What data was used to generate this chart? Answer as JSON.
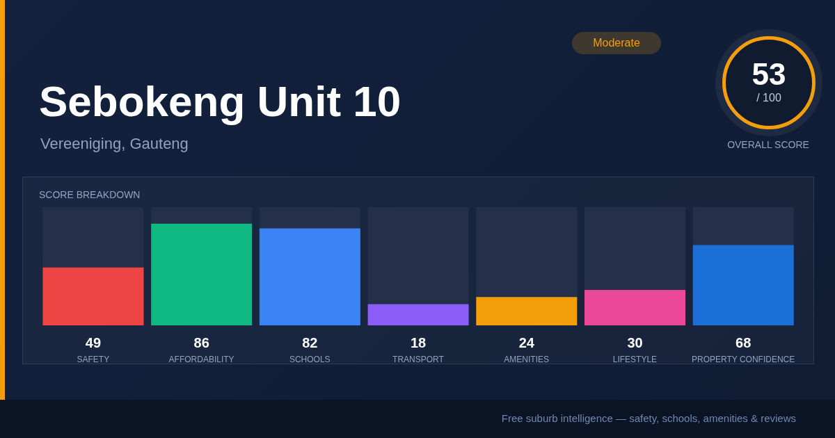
{
  "chart_data": {
    "type": "bar",
    "title": "Sebokeng Unit 10",
    "subtitle": "Vereeniging, Gauteng",
    "categories": [
      "SAFETY",
      "AFFORDABILITY",
      "SCHOOLS",
      "TRANSPORT",
      "AMENITIES",
      "LIFESTYLE",
      "PROPERTY CONFIDENCE"
    ],
    "values": [
      49,
      86,
      82,
      18,
      24,
      30,
      68
    ],
    "colors": [
      "#ef4444",
      "#10b981",
      "#3b82f6",
      "#8b5cf6",
      "#f59e0b",
      "#ec4899",
      "#1d6fd8"
    ],
    "ylim": [
      0,
      100
    ],
    "tick_labels": "x",
    "data_labels": true,
    "annotations": [
      "Moderate",
      "53",
      "/ 100",
      "OVERALL SCORE",
      "SCORE BREAKDOWN",
      "Free suburb intelligence — safety, schools, amenities & reviews"
    ]
  }
}
